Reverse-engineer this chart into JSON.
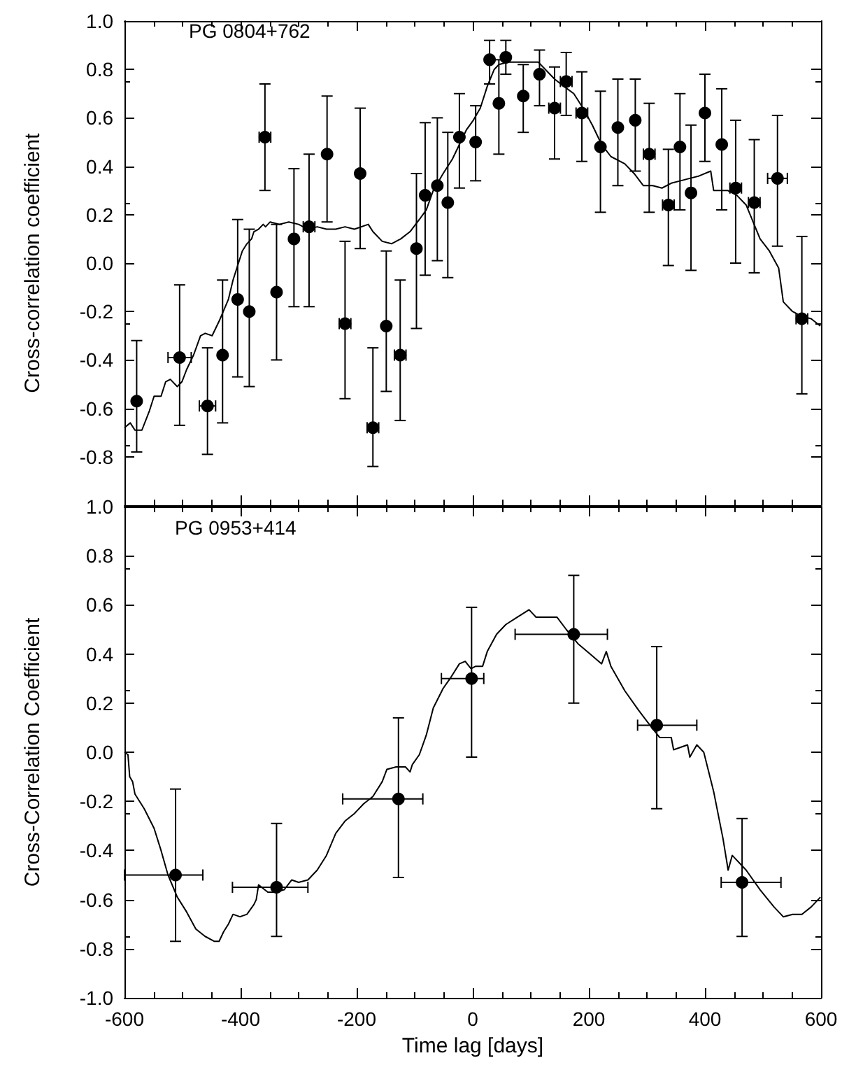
{
  "chart_data": [
    {
      "type": "scatter",
      "title": "PG 0804+762",
      "ylabel": "Cross-correlation coefficient",
      "xlim": [
        -600,
        600
      ],
      "ylim": [
        -1,
        1
      ],
      "xticks": [
        {
          "value": -600,
          "label": null
        },
        {
          "value": -400,
          "label": null
        },
        {
          "value": -200,
          "label": null
        },
        {
          "value": 0,
          "label": null
        },
        {
          "value": 200,
          "label": null
        },
        {
          "value": 400,
          "label": null
        },
        {
          "value": 600,
          "label": null
        }
      ],
      "yticks": [
        {
          "value": -1,
          "label": null
        },
        {
          "value": -0.8,
          "label": "-0.8"
        },
        {
          "value": -0.6,
          "label": "-0.6"
        },
        {
          "value": -0.4,
          "label": "-0.4"
        },
        {
          "value": -0.2,
          "label": "-0.2"
        },
        {
          "value": 0,
          "label": "0.0"
        },
        {
          "value": 0.2,
          "label": "0.2"
        },
        {
          "value": 0.4,
          "label": "0.4"
        },
        {
          "value": 0.6,
          "label": "0.6"
        },
        {
          "value": 0.8,
          "label": "0.8"
        },
        {
          "value": 1,
          "label": "1.0"
        }
      ],
      "tick_labels": "y",
      "series": [
        {
          "type": "line",
          "color": "#000000",
          "x": [
            -600,
            -590,
            -582,
            -570,
            -557,
            -549,
            -537,
            -529,
            -521,
            -509,
            -501,
            -493,
            -481,
            -469,
            -461,
            -449,
            -437,
            -421,
            -413,
            -405,
            -397,
            -389,
            -381,
            -377,
            -369,
            -361,
            -357,
            -349,
            -333,
            -317,
            -300,
            -284,
            -268,
            -252,
            -236,
            -220,
            -204,
            -180,
            -172,
            -156,
            -140,
            -124,
            -108,
            -92,
            -80,
            -68,
            -51,
            -35,
            -23,
            -11,
            1,
            13,
            25,
            37,
            45,
            61,
            93,
            113,
            125,
            141,
            157,
            174,
            190,
            206,
            222,
            238,
            262,
            278,
            294,
            310,
            326,
            342,
            358,
            374,
            390,
            410,
            415,
            439,
            455,
            471,
            495,
            511,
            527,
            535,
            551,
            567,
            583,
            599
          ],
          "values": [
            -0.68,
            -0.66,
            -0.69,
            -0.69,
            -0.61,
            -0.55,
            -0.55,
            -0.49,
            -0.48,
            -0.51,
            -0.49,
            -0.44,
            -0.38,
            -0.3,
            -0.29,
            -0.3,
            -0.24,
            -0.15,
            -0.07,
            -0.01,
            0.05,
            0.08,
            0.1,
            0.13,
            0.14,
            0.16,
            0.15,
            0.17,
            0.16,
            0.17,
            0.16,
            0.14,
            0.15,
            0.14,
            0.14,
            0.15,
            0.14,
            0.16,
            0.13,
            0.09,
            0.08,
            0.1,
            0.13,
            0.18,
            0.22,
            0.3,
            0.37,
            0.43,
            0.49,
            0.55,
            0.59,
            0.64,
            0.73,
            0.8,
            0.82,
            0.83,
            0.83,
            0.83,
            0.8,
            0.76,
            0.73,
            0.7,
            0.64,
            0.57,
            0.49,
            0.44,
            0.41,
            0.37,
            0.32,
            0.32,
            0.31,
            0.33,
            0.34,
            0.35,
            0.36,
            0.38,
            0.3,
            0.3,
            0.28,
            0.24,
            0.1,
            0.05,
            -0.02,
            -0.16,
            -0.2,
            -0.22,
            -0.23,
            -0.26
          ]
        },
        {
          "marker": "circle",
          "color": "#000000",
          "x": [
            -579,
            -505,
            -457,
            -431,
            -405,
            -385,
            -358,
            -338,
            -308,
            -282,
            -251,
            -220,
            -194,
            -172,
            -149,
            -125,
            -97,
            -82,
            -61,
            -43,
            -23,
            5,
            29,
            45,
            57,
            87,
            115,
            141,
            161,
            188,
            220,
            250,
            280,
            304,
            337,
            357,
            376,
            400,
            429,
            453,
            485,
            525,
            567
          ],
          "values": [
            -0.57,
            -0.39,
            -0.59,
            -0.38,
            -0.15,
            -0.2,
            0.52,
            -0.12,
            0.1,
            0.15,
            0.45,
            -0.25,
            0.37,
            -0.68,
            -0.26,
            -0.38,
            0.06,
            0.28,
            0.32,
            0.25,
            0.52,
            0.5,
            0.84,
            0.66,
            0.85,
            0.69,
            0.78,
            0.64,
            0.75,
            0.62,
            0.48,
            0.56,
            0.59,
            0.45,
            0.24,
            0.48,
            0.29,
            0.62,
            0.49,
            0.31,
            0.25,
            0.35,
            -0.23
          ],
          "errors": [
            [
              -0.78,
              -0.32
            ],
            [
              -0.67,
              -0.09
            ],
            [
              -0.79,
              -0.35
            ],
            [
              -0.66,
              -0.07
            ],
            [
              -0.47,
              0.18
            ],
            [
              -0.51,
              0.14
            ],
            [
              0.3,
              0.74
            ],
            [
              -0.4,
              0.16
            ],
            [
              -0.18,
              0.39
            ],
            [
              -0.18,
              0.45
            ],
            [
              0.17,
              0.69
            ],
            [
              -0.56,
              0.09
            ],
            [
              0.06,
              0.64
            ],
            [
              -0.84,
              -0.35
            ],
            [
              -0.53,
              0.05
            ],
            [
              -0.65,
              -0.07
            ],
            [
              -0.27,
              0.37
            ],
            [
              -0.05,
              0.58
            ],
            [
              0.01,
              0.6
            ],
            [
              -0.06,
              0.54
            ],
            [
              0.31,
              0.7
            ],
            [
              0.34,
              0.65
            ],
            [
              0.74,
              0.92
            ],
            [
              0.45,
              0.84
            ],
            [
              0.78,
              0.92
            ],
            [
              0.54,
              0.82
            ],
            [
              0.65,
              0.88
            ],
            [
              0.43,
              0.81
            ],
            [
              0.61,
              0.87
            ],
            [
              0.42,
              0.79
            ],
            [
              0.21,
              0.71
            ],
            [
              0.32,
              0.76
            ],
            [
              0.38,
              0.76
            ],
            [
              0.21,
              0.66
            ],
            [
              -0.01,
              0.47
            ],
            [
              0.22,
              0.7
            ],
            [
              -0.03,
              0.57
            ],
            [
              0.42,
              0.78
            ],
            [
              0.22,
              0.72
            ],
            [
              0,
              0.59
            ],
            [
              -0.04,
              0.51
            ],
            [
              0.07,
              0.61
            ],
            [
              -0.54,
              0.11
            ]
          ],
          "xerrors": [
            null,
            [
              -525,
              -485
            ],
            [
              -471,
              -443
            ],
            null,
            null,
            null,
            [
              -368,
              -348
            ],
            null,
            null,
            [
              -292,
              -272
            ],
            null,
            [
              -230,
              -210
            ],
            null,
            [
              -182,
              -162
            ],
            null,
            [
              -135,
              -115
            ],
            null,
            null,
            null,
            null,
            null,
            null,
            null,
            null,
            null,
            null,
            null,
            [
              131,
              151
            ],
            [
              151,
              171
            ],
            [
              178,
              198
            ],
            null,
            null,
            null,
            [
              294,
              314
            ],
            [
              327,
              347
            ],
            null,
            null,
            null,
            null,
            [
              443,
              463
            ],
            [
              475,
              495
            ],
            [
              508,
              542
            ],
            [
              557,
              577
            ]
          ]
        }
      ]
    },
    {
      "type": "scatter",
      "title": "PG 0953+414",
      "xlabel": "Time lag [days]",
      "ylabel": "Cross-Correlation Coefficient",
      "xlim": [
        -600,
        600
      ],
      "ylim": [
        -1,
        1
      ],
      "xticks": [
        -600,
        -400,
        -200,
        0,
        200,
        400,
        600
      ],
      "yticks": [
        {
          "value": -1,
          "label": "-1.0"
        },
        {
          "value": -0.8,
          "label": "-0.8"
        },
        {
          "value": -0.6,
          "label": "-0.6"
        },
        {
          "value": -0.4,
          "label": "-0.4"
        },
        {
          "value": -0.2,
          "label": "-0.2"
        },
        {
          "value": 0,
          "label": "0.0"
        },
        {
          "value": 0.2,
          "label": "0.2"
        },
        {
          "value": 0.4,
          "label": "0.4"
        },
        {
          "value": 0.6,
          "label": "0.6"
        },
        {
          "value": 0.8,
          "label": "0.8"
        },
        {
          "value": 1,
          "label": "1.0"
        }
      ],
      "series": [
        {
          "type": "line",
          "color": "#000000",
          "x": [
            -600,
            -594,
            -591,
            -586,
            -582,
            -566,
            -549,
            -537,
            -525,
            -509,
            -493,
            -477,
            -461,
            -445,
            -437,
            -429,
            -421,
            -413,
            -401,
            -389,
            -377,
            -373,
            -369,
            -353,
            -341,
            -325,
            -312,
            -300,
            -284,
            -268,
            -252,
            -236,
            -220,
            -204,
            -188,
            -172,
            -156,
            -148,
            -132,
            -116,
            -108,
            -104,
            -92,
            -80,
            -68,
            -51,
            -39,
            -23,
            -13,
            -3,
            5,
            17,
            25,
            41,
            57,
            77,
            97,
            109,
            125,
            145,
            161,
            182,
            202,
            222,
            230,
            238,
            262,
            286,
            302,
            322,
            342,
            346,
            370,
            374,
            386,
            398,
            415,
            431,
            440,
            447,
            471,
            495,
            519,
            535,
            551,
            567,
            583,
            599
          ],
          "values": [
            0,
            -0.01,
            -0.1,
            -0.12,
            -0.17,
            -0.23,
            -0.31,
            -0.4,
            -0.5,
            -0.59,
            -0.65,
            -0.72,
            -0.75,
            -0.77,
            -0.77,
            -0.73,
            -0.7,
            -0.66,
            -0.67,
            -0.66,
            -0.62,
            -0.6,
            -0.54,
            -0.57,
            -0.57,
            -0.56,
            -0.52,
            -0.53,
            -0.52,
            -0.48,
            -0.42,
            -0.33,
            -0.28,
            -0.25,
            -0.21,
            -0.18,
            -0.12,
            -0.07,
            -0.06,
            -0.06,
            -0.08,
            -0.05,
            -0.01,
            0.07,
            0.18,
            0.26,
            0.3,
            0.36,
            0.37,
            0.34,
            0.35,
            0.35,
            0.41,
            0.48,
            0.52,
            0.55,
            0.58,
            0.55,
            0.55,
            0.55,
            0.5,
            0.44,
            0.4,
            0.36,
            0.41,
            0.35,
            0.25,
            0.17,
            0.12,
            0.06,
            0.06,
            0.01,
            0.03,
            -0.02,
            0.03,
            0,
            -0.16,
            -0.35,
            -0.48,
            -0.42,
            -0.48,
            -0.56,
            -0.63,
            -0.67,
            -0.66,
            -0.66,
            -0.63,
            -0.59
          ]
        },
        {
          "marker": "circle",
          "color": "#000000",
          "x": [
            -512,
            -338,
            -128,
            -2,
            174,
            317,
            464
          ],
          "values": [
            -0.5,
            -0.55,
            -0.19,
            0.3,
            0.48,
            0.11,
            -0.53
          ],
          "errors": [
            [
              -0.77,
              -0.15
            ],
            [
              -0.75,
              -0.29
            ],
            [
              -0.51,
              0.14
            ],
            [
              -0.02,
              0.59
            ],
            [
              0.2,
              0.72
            ],
            [
              -0.23,
              0.43
            ],
            [
              -0.75,
              -0.27
            ]
          ],
          "xerrors": [
            [
              -600,
              -465
            ],
            [
              -414,
              -284
            ],
            [
              -224,
              -86
            ],
            [
              -54,
              19
            ],
            [
              73,
              232
            ],
            [
              284,
              386
            ],
            [
              428,
              531
            ]
          ]
        }
      ]
    }
  ]
}
